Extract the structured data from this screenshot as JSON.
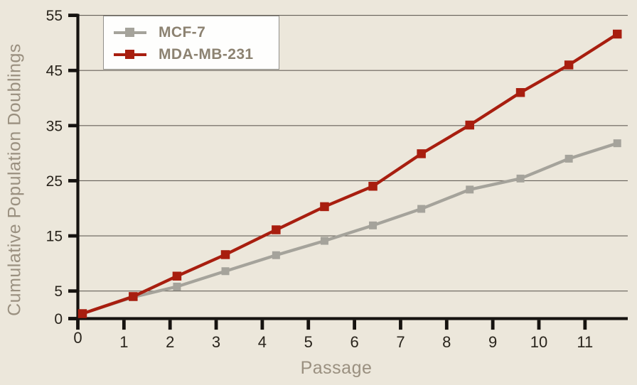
{
  "chart_data": {
    "type": "line",
    "title": "",
    "xlabel": "Passage",
    "ylabel": "Cumulative Population Doublings",
    "xlim": [
      0,
      11.9
    ],
    "ylim": [
      0,
      55
    ],
    "x_ticks": [
      0,
      1,
      2,
      3,
      4,
      5,
      6,
      7,
      8,
      9,
      10,
      11
    ],
    "y_ticks": [
      0,
      5,
      15,
      25,
      35,
      45,
      55
    ],
    "gridline_values": [
      5,
      15,
      25,
      35,
      45,
      55
    ],
    "grid": true,
    "legend_position": "top-left",
    "x": [
      0.1,
      1.2,
      2.15,
      3.2,
      4.3,
      5.35,
      6.4,
      7.45,
      8.5,
      9.6,
      10.65,
      11.7
    ],
    "series": [
      {
        "name": "MCF-7",
        "color": "#a5a39b",
        "marker": "square",
        "marker_size": 11,
        "line_width": 4.3,
        "values": [
          0.9,
          3.9,
          5.8,
          8.6,
          11.5,
          14.1,
          16.9,
          19.9,
          23.4,
          25.4,
          29.0,
          31.8
        ]
      },
      {
        "name": "MDA-MB-231",
        "color": "#a81e0f",
        "marker": "square",
        "marker_size": 12.5,
        "line_width": 4.3,
        "values": [
          0.9,
          4.0,
          7.7,
          11.6,
          16.1,
          20.3,
          24.0,
          29.9,
          35.1,
          41.0,
          46.0,
          51.6
        ]
      }
    ]
  },
  "colors": {
    "background": "#ece7db",
    "gridline": "#66615a",
    "axis": "#161310",
    "tick_label": "#29241c",
    "axis_title": "#9a9080",
    "legend_text": "#8c8271",
    "legend_bg": "#fefefd",
    "legend_border": "#91908a"
  }
}
